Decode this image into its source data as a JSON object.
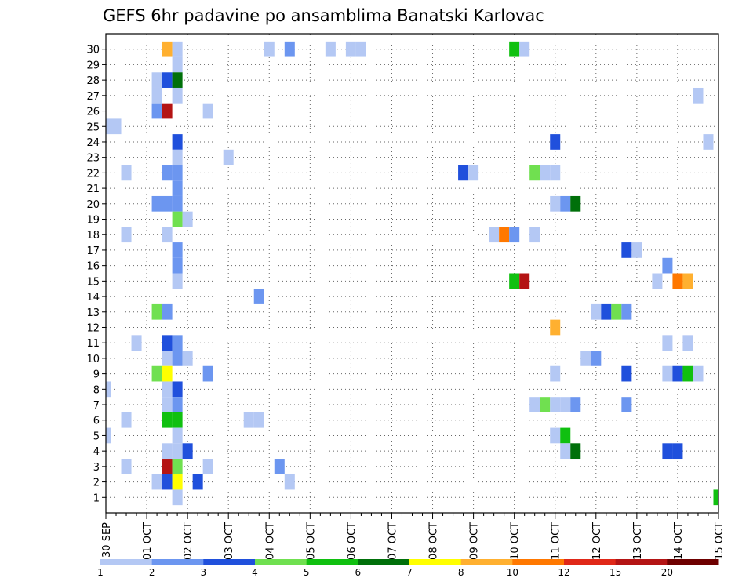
{
  "chart_data": {
    "type": "heatmap",
    "title": "GEFS 6hr padavine po ansamblima Banatski Karlovac",
    "x_start": "2020-09-30",
    "x_end": "2020-10-15",
    "x_ticks": [
      "30 SEP",
      "01 OCT",
      "02 OCT",
      "03 OCT",
      "04 OCT",
      "05 OCT",
      "06 OCT",
      "07 OCT",
      "08 OCT",
      "09 OCT",
      "10 OCT",
      "11 OCT",
      "12 OCT",
      "13 OCT",
      "14 OCT",
      "15 OCT"
    ],
    "y_ticks": [
      "1",
      "2",
      "3",
      "4",
      "5",
      "6",
      "7",
      "8",
      "9",
      "10",
      "11",
      "12",
      "13",
      "14",
      "15",
      "16",
      "17",
      "18",
      "19",
      "20",
      "21",
      "22",
      "23",
      "24",
      "25",
      "26",
      "27",
      "28",
      "29",
      "30"
    ],
    "grid": true,
    "legend": {
      "placement": "bottom",
      "labels": [
        "1",
        "2",
        "3",
        "4",
        "5",
        "6",
        "7",
        "8",
        "10",
        "12",
        "15",
        "20"
      ],
      "colors": [
        "#b4c8f4",
        "#6c96f0",
        "#2050dc",
        "#70e050",
        "#10c010",
        "#00700a",
        "#ffff00",
        "#ffb030",
        "#ff7800",
        "#e02818",
        "#b41414",
        "#6e0000"
      ]
    },
    "cells": [
      {
        "m": 30,
        "t": "2020-10-01T12:00",
        "v": 8
      },
      {
        "m": 30,
        "t": "2020-10-01T18:00",
        "v": 1
      },
      {
        "m": 30,
        "t": "2020-10-04T00:00",
        "v": 1
      },
      {
        "m": 30,
        "t": "2020-10-04T12:00",
        "v": 2
      },
      {
        "m": 30,
        "t": "2020-10-05T12:00",
        "v": 1
      },
      {
        "m": 30,
        "t": "2020-10-06T00:00",
        "v": 1
      },
      {
        "m": 30,
        "t": "2020-10-06T06:00",
        "v": 1
      },
      {
        "m": 30,
        "t": "2020-10-10T00:00",
        "v": 5
      },
      {
        "m": 30,
        "t": "2020-10-10T06:00",
        "v": 1
      },
      {
        "m": 29,
        "t": "2020-10-01T18:00",
        "v": 1
      },
      {
        "m": 28,
        "t": "2020-10-01T06:00",
        "v": 1
      },
      {
        "m": 28,
        "t": "2020-10-01T12:00",
        "v": 3
      },
      {
        "m": 28,
        "t": "2020-10-01T18:00",
        "v": 6
      },
      {
        "m": 27,
        "t": "2020-10-01T06:00",
        "v": 1
      },
      {
        "m": 27,
        "t": "2020-10-01T18:00",
        "v": 1
      },
      {
        "m": 27,
        "t": "2020-10-14T12:00",
        "v": 1
      },
      {
        "m": 26,
        "t": "2020-10-01T06:00",
        "v": 2
      },
      {
        "m": 26,
        "t": "2020-10-01T12:00",
        "v": 15
      },
      {
        "m": 26,
        "t": "2020-10-02T12:00",
        "v": 1
      },
      {
        "m": 25,
        "t": "2020-09-30T00:00",
        "v": 1
      },
      {
        "m": 25,
        "t": "2020-09-30T06:00",
        "v": 1
      },
      {
        "m": 24,
        "t": "2020-10-01T18:00",
        "v": 3
      },
      {
        "m": 24,
        "t": "2020-10-11T00:00",
        "v": 3
      },
      {
        "m": 24,
        "t": "2020-10-14T18:00",
        "v": 1
      },
      {
        "m": 23,
        "t": "2020-10-01T18:00",
        "v": 1
      },
      {
        "m": 23,
        "t": "2020-10-03T00:00",
        "v": 1
      },
      {
        "m": 22,
        "t": "2020-09-30T12:00",
        "v": 1
      },
      {
        "m": 22,
        "t": "2020-10-01T12:00",
        "v": 2
      },
      {
        "m": 22,
        "t": "2020-10-01T18:00",
        "v": 2
      },
      {
        "m": 22,
        "t": "2020-10-08T18:00",
        "v": 3
      },
      {
        "m": 22,
        "t": "2020-10-09T00:00",
        "v": 1
      },
      {
        "m": 22,
        "t": "2020-10-10T12:00",
        "v": 4
      },
      {
        "m": 22,
        "t": "2020-10-10T18:00",
        "v": 1
      },
      {
        "m": 22,
        "t": "2020-10-11T00:00",
        "v": 1
      },
      {
        "m": 21,
        "t": "2020-10-01T18:00",
        "v": 2
      },
      {
        "m": 20,
        "t": "2020-10-01T06:00",
        "v": 2
      },
      {
        "m": 20,
        "t": "2020-10-01T12:00",
        "v": 2
      },
      {
        "m": 20,
        "t": "2020-10-01T18:00",
        "v": 2
      },
      {
        "m": 20,
        "t": "2020-10-11T00:00",
        "v": 1
      },
      {
        "m": 20,
        "t": "2020-10-11T06:00",
        "v": 2
      },
      {
        "m": 20,
        "t": "2020-10-11T12:00",
        "v": 6
      },
      {
        "m": 19,
        "t": "2020-10-01T18:00",
        "v": 4
      },
      {
        "m": 19,
        "t": "2020-10-02T00:00",
        "v": 1
      },
      {
        "m": 18,
        "t": "2020-09-30T12:00",
        "v": 1
      },
      {
        "m": 18,
        "t": "2020-10-01T12:00",
        "v": 1
      },
      {
        "m": 18,
        "t": "2020-10-09T12:00",
        "v": 1
      },
      {
        "m": 18,
        "t": "2020-10-09T18:00",
        "v": 10
      },
      {
        "m": 18,
        "t": "2020-10-10T00:00",
        "v": 2
      },
      {
        "m": 18,
        "t": "2020-10-10T12:00",
        "v": 1
      },
      {
        "m": 17,
        "t": "2020-10-01T18:00",
        "v": 2
      },
      {
        "m": 17,
        "t": "2020-10-12T18:00",
        "v": 3
      },
      {
        "m": 17,
        "t": "2020-10-13T00:00",
        "v": 1
      },
      {
        "m": 16,
        "t": "2020-10-01T18:00",
        "v": 2
      },
      {
        "m": 16,
        "t": "2020-10-13T18:00",
        "v": 2
      },
      {
        "m": 15,
        "t": "2020-10-01T18:00",
        "v": 1
      },
      {
        "m": 15,
        "t": "2020-10-10T00:00",
        "v": 5
      },
      {
        "m": 15,
        "t": "2020-10-10T06:00",
        "v": 15
      },
      {
        "m": 15,
        "t": "2020-10-13T12:00",
        "v": 1
      },
      {
        "m": 15,
        "t": "2020-10-14T00:00",
        "v": 10
      },
      {
        "m": 15,
        "t": "2020-10-14T06:00",
        "v": 8
      },
      {
        "m": 14,
        "t": "2020-10-03T18:00",
        "v": 2
      },
      {
        "m": 13,
        "t": "2020-10-01T06:00",
        "v": 4
      },
      {
        "m": 13,
        "t": "2020-10-01T12:00",
        "v": 2
      },
      {
        "m": 13,
        "t": "2020-10-12T00:00",
        "v": 1
      },
      {
        "m": 13,
        "t": "2020-10-12T06:00",
        "v": 3
      },
      {
        "m": 13,
        "t": "2020-10-12T12:00",
        "v": 4
      },
      {
        "m": 13,
        "t": "2020-10-12T18:00",
        "v": 2
      },
      {
        "m": 12,
        "t": "2020-10-11T00:00",
        "v": 8
      },
      {
        "m": 11,
        "t": "2020-09-30T18:00",
        "v": 1
      },
      {
        "m": 11,
        "t": "2020-10-01T12:00",
        "v": 3
      },
      {
        "m": 11,
        "t": "2020-10-01T18:00",
        "v": 2
      },
      {
        "m": 11,
        "t": "2020-10-13T18:00",
        "v": 1
      },
      {
        "m": 11,
        "t": "2020-10-14T06:00",
        "v": 1
      },
      {
        "m": 10,
        "t": "2020-10-01T12:00",
        "v": 1
      },
      {
        "m": 10,
        "t": "2020-10-01T18:00",
        "v": 2
      },
      {
        "m": 10,
        "t": "2020-10-02T00:00",
        "v": 1
      },
      {
        "m": 10,
        "t": "2020-10-11T18:00",
        "v": 1
      },
      {
        "m": 10,
        "t": "2020-10-12T00:00",
        "v": 2
      },
      {
        "m": 9,
        "t": "2020-10-01T06:00",
        "v": 4
      },
      {
        "m": 9,
        "t": "2020-10-01T12:00",
        "v": 7
      },
      {
        "m": 9,
        "t": "2020-10-02T12:00",
        "v": 2
      },
      {
        "m": 9,
        "t": "2020-10-11T00:00",
        "v": 1
      },
      {
        "m": 9,
        "t": "2020-10-12T18:00",
        "v": 3
      },
      {
        "m": 9,
        "t": "2020-10-13T18:00",
        "v": 1
      },
      {
        "m": 9,
        "t": "2020-10-14T00:00",
        "v": 3
      },
      {
        "m": 9,
        "t": "2020-10-14T06:00",
        "v": 5
      },
      {
        "m": 9,
        "t": "2020-10-14T12:00",
        "v": 1
      },
      {
        "m": 8,
        "t": "2020-09-30T00:00",
        "v": 1
      },
      {
        "m": 8,
        "t": "2020-10-01T12:00",
        "v": 1
      },
      {
        "m": 8,
        "t": "2020-10-01T18:00",
        "v": 3
      },
      {
        "m": 7,
        "t": "2020-10-01T12:00",
        "v": 1
      },
      {
        "m": 7,
        "t": "2020-10-01T18:00",
        "v": 2
      },
      {
        "m": 7,
        "t": "2020-10-10T12:00",
        "v": 1
      },
      {
        "m": 7,
        "t": "2020-10-10T18:00",
        "v": 4
      },
      {
        "m": 7,
        "t": "2020-10-11T00:00",
        "v": 1
      },
      {
        "m": 7,
        "t": "2020-10-11T06:00",
        "v": 1
      },
      {
        "m": 7,
        "t": "2020-10-11T12:00",
        "v": 2
      },
      {
        "m": 7,
        "t": "2020-10-12T18:00",
        "v": 2
      },
      {
        "m": 6,
        "t": "2020-09-30T12:00",
        "v": 1
      },
      {
        "m": 6,
        "t": "2020-10-01T12:00",
        "v": 5
      },
      {
        "m": 6,
        "t": "2020-10-01T18:00",
        "v": 5
      },
      {
        "m": 6,
        "t": "2020-10-03T12:00",
        "v": 1
      },
      {
        "m": 6,
        "t": "2020-10-03T18:00",
        "v": 1
      },
      {
        "m": 5,
        "t": "2020-09-30T00:00",
        "v": 1
      },
      {
        "m": 5,
        "t": "2020-10-01T18:00",
        "v": 1
      },
      {
        "m": 5,
        "t": "2020-10-11T00:00",
        "v": 1
      },
      {
        "m": 5,
        "t": "2020-10-11T06:00",
        "v": 5
      },
      {
        "m": 4,
        "t": "2020-10-01T12:00",
        "v": 1
      },
      {
        "m": 4,
        "t": "2020-10-01T18:00",
        "v": 1
      },
      {
        "m": 4,
        "t": "2020-10-02T00:00",
        "v": 3
      },
      {
        "m": 4,
        "t": "2020-10-11T06:00",
        "v": 1
      },
      {
        "m": 4,
        "t": "2020-10-11T12:00",
        "v": 6
      },
      {
        "m": 4,
        "t": "2020-10-13T18:00",
        "v": 3
      },
      {
        "m": 4,
        "t": "2020-10-14T00:00",
        "v": 3
      },
      {
        "m": 3,
        "t": "2020-09-30T12:00",
        "v": 1
      },
      {
        "m": 3,
        "t": "2020-10-01T12:00",
        "v": 15
      },
      {
        "m": 3,
        "t": "2020-10-01T18:00",
        "v": 4
      },
      {
        "m": 3,
        "t": "2020-10-02T12:00",
        "v": 1
      },
      {
        "m": 3,
        "t": "2020-10-04T06:00",
        "v": 2
      },
      {
        "m": 2,
        "t": "2020-10-01T06:00",
        "v": 1
      },
      {
        "m": 2,
        "t": "2020-10-01T12:00",
        "v": 3
      },
      {
        "m": 2,
        "t": "2020-10-01T18:00",
        "v": 7
      },
      {
        "m": 2,
        "t": "2020-10-02T06:00",
        "v": 3
      },
      {
        "m": 2,
        "t": "2020-10-04T12:00",
        "v": 1
      },
      {
        "m": 1,
        "t": "2020-10-01T18:00",
        "v": 1
      },
      {
        "m": 1,
        "t": "2020-10-15T00:00",
        "v": 5
      }
    ]
  }
}
